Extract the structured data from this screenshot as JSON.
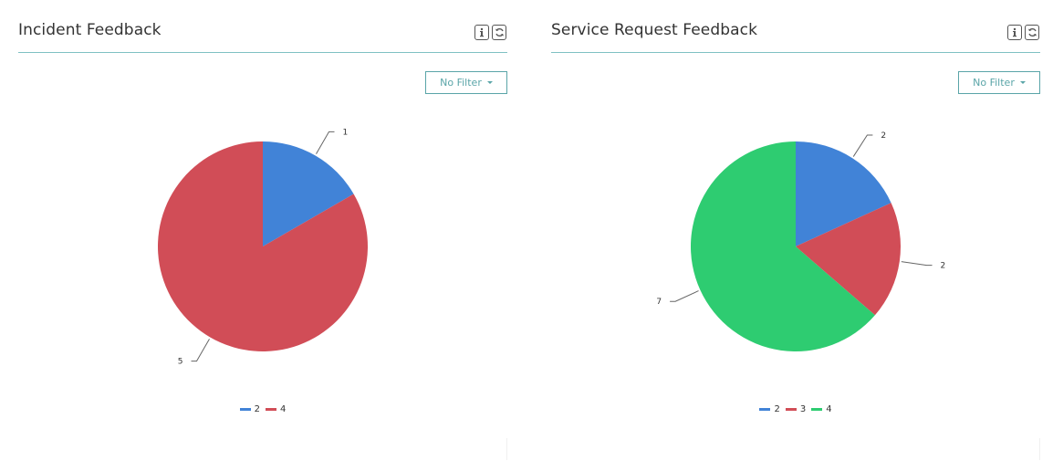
{
  "panels": [
    {
      "title": "Incident Feedback",
      "filter_label": "No Filter",
      "icons": {
        "info": "info-icon",
        "refresh": "refresh-icon"
      }
    },
    {
      "title": "Service Request Feedback",
      "filter_label": "No Filter",
      "icons": {
        "info": "info-icon",
        "refresh": "refresh-icon"
      }
    }
  ],
  "colors": {
    "blue": "#4183d7",
    "red": "#d14d57",
    "green": "#2ecc71",
    "accent": "#5aa5a8"
  },
  "chart_data": [
    {
      "type": "pie",
      "title": "Incident Feedback",
      "slices": [
        {
          "name": "2",
          "value": 1,
          "label": "1",
          "color": "#4183d7"
        },
        {
          "name": "4",
          "value": 5,
          "label": "5",
          "color": "#d14d57"
        }
      ],
      "legend": {
        "position": "bottom",
        "entries": [
          "2",
          "4"
        ]
      }
    },
    {
      "type": "pie",
      "title": "Service Request Feedback",
      "slices": [
        {
          "name": "2",
          "value": 2,
          "label": "2",
          "color": "#4183d7"
        },
        {
          "name": "3",
          "value": 2,
          "label": "2",
          "color": "#d14d57"
        },
        {
          "name": "4",
          "value": 7,
          "label": "7",
          "color": "#2ecc71"
        }
      ],
      "legend": {
        "position": "bottom",
        "entries": [
          "2",
          "3",
          "4"
        ]
      }
    }
  ]
}
